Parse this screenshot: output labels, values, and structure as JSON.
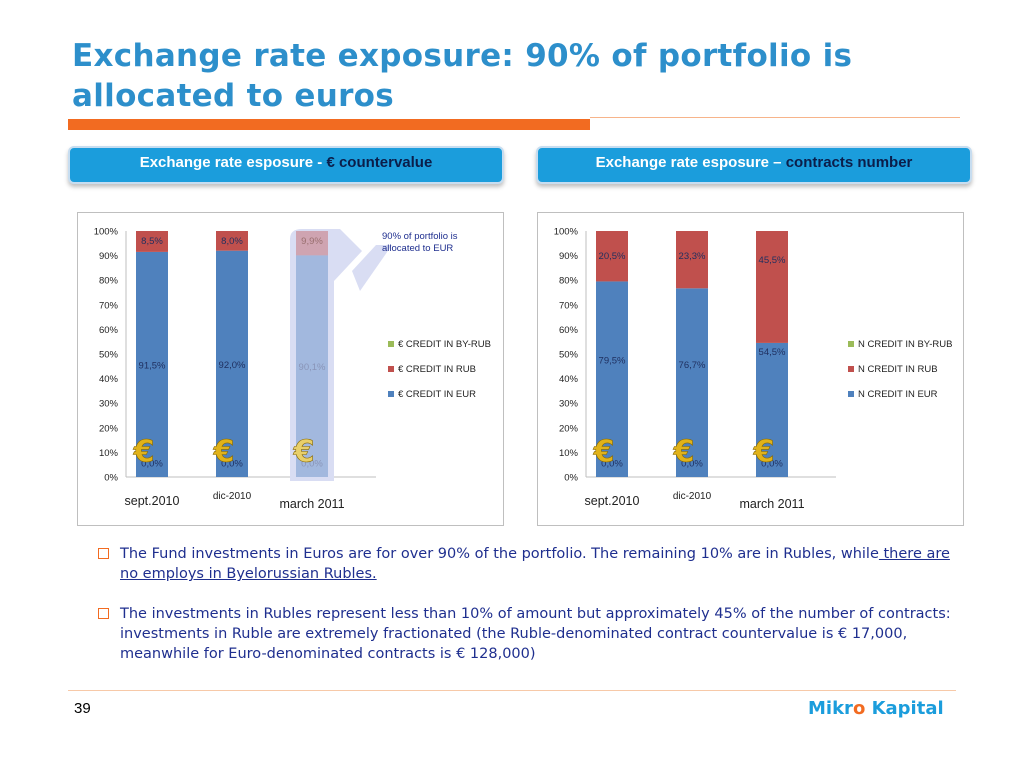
{
  "slide": {
    "title": "Exchange rate exposure: 90% of portfolio is allocated to euros",
    "page_number": "39",
    "brand": {
      "part1": "Mikr",
      "part2": "o",
      "part3": " Kapital"
    }
  },
  "tabs": [
    {
      "lead": "Exchange rate esposure - ",
      "bold": "€ countervalue"
    },
    {
      "lead": "Exchange rate esposure – ",
      "bold": "contracts number"
    }
  ],
  "annotation": "90% of portfolio is allocated to EUR",
  "bullets": [
    {
      "text": "The Fund investments in Euros are for over 90% of the portfolio. The remaining 10% are in Rubles, while",
      "underlined": " there are no employs in Byelorussian Rubles."
    },
    {
      "text": "The investments in Rubles represent less than 10% of amount but approximately 45% of the number of contracts: investments in Ruble are extremely fractionated (the Ruble-denominated contract countervalue is € 17,000, meanwhile for Euro-denominated contracts is € 128,000)",
      "underlined": ""
    }
  ],
  "colors": {
    "eur": "#4F81BD",
    "rub": "#C0504D",
    "byrub": "#9BBB59",
    "highlight": "#D9DDF3",
    "accent": "#F26B21",
    "title": "#2D8FCB"
  },
  "chart_data": [
    {
      "type": "bar",
      "stacked": true,
      "categories": [
        "sept.2010",
        "dic-2010",
        "march 2011"
      ],
      "yticks": [
        "0%",
        "10%",
        "20%",
        "30%",
        "40%",
        "50%",
        "60%",
        "70%",
        "80%",
        "90%",
        "100%"
      ],
      "ylim": [
        0,
        100
      ],
      "series": [
        {
          "name": "€ CREDIT IN EUR",
          "values": [
            91.5,
            92.0,
            90.1
          ],
          "labels": [
            "91,5%",
            "92,0%",
            "90,1%"
          ]
        },
        {
          "name": "€ CREDIT IN RUB",
          "values": [
            8.5,
            8.0,
            9.9
          ],
          "labels": [
            "8,5%",
            "8,0%",
            "9,9%"
          ]
        },
        {
          "name": "€ CREDIT IN BY-RUB",
          "values": [
            0.0,
            0.0,
            0.0
          ],
          "labels": [
            "0,0%",
            "0,0%",
            "0,0%"
          ]
        }
      ],
      "legend": [
        "€ CREDIT IN BY-RUB",
        "€ CREDIT IN RUB",
        "€ CREDIT IN EUR"
      ],
      "legend_position": "right",
      "highlighted_category": "march 2011"
    },
    {
      "type": "bar",
      "stacked": true,
      "categories": [
        "sept.2010",
        "dic-2010",
        "march 2011"
      ],
      "yticks": [
        "0%",
        "10%",
        "20%",
        "30%",
        "40%",
        "50%",
        "60%",
        "70%",
        "80%",
        "90%",
        "100%"
      ],
      "ylim": [
        0,
        100
      ],
      "series": [
        {
          "name": "N CREDIT IN EUR",
          "values": [
            79.5,
            76.7,
            54.5
          ],
          "labels": [
            "79,5%",
            "76,7%",
            "54,5%"
          ]
        },
        {
          "name": "N CREDIT IN RUB",
          "values": [
            20.5,
            23.3,
            45.5
          ],
          "labels": [
            "20,5%",
            "23,3%",
            "45,5%"
          ]
        },
        {
          "name": "N CREDIT IN BY-RUB",
          "values": [
            0.0,
            0.0,
            0.0
          ],
          "labels": [
            "0,0%",
            "0,0%",
            "0,0%"
          ]
        }
      ],
      "legend": [
        "N CREDIT IN BY-RUB",
        "N CREDIT IN RUB",
        "N CREDIT IN EUR"
      ],
      "legend_position": "right"
    }
  ]
}
